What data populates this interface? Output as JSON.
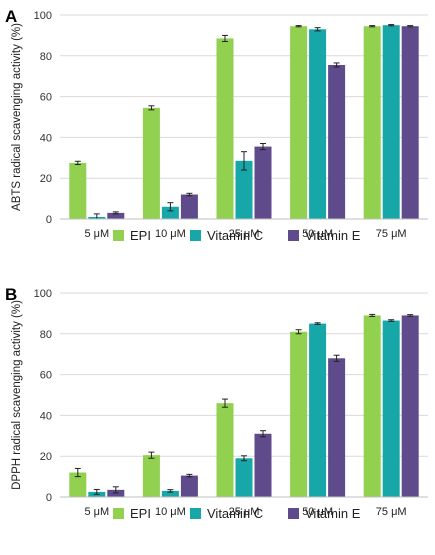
{
  "figure": {
    "panels": [
      "A",
      "B"
    ]
  },
  "chart_data": [
    {
      "panel": "A",
      "type": "bar",
      "title": "",
      "xlabel": "",
      "ylabel": "ABTS radical scavenging activity (%)",
      "ylim": [
        0,
        100
      ],
      "yticks": [
        0,
        20,
        40,
        60,
        80,
        100
      ],
      "grid": true,
      "legend_position": "bottom",
      "categories": [
        "5 μM",
        "10 μM",
        "25 μM",
        "50 μM",
        "75 μM"
      ],
      "series": [
        {
          "name": "EPI",
          "color": "#92d050",
          "values": [
            27.5,
            54.5,
            88.5,
            94.5,
            94.5
          ],
          "errors": [
            0.8,
            1.0,
            1.5,
            0.3,
            0.3
          ]
        },
        {
          "name": "Vitamin C",
          "color": "#17a7a9",
          "values": [
            1.0,
            6.0,
            28.5,
            93.0,
            95.0
          ],
          "errors": [
            1.5,
            2.0,
            4.5,
            0.8,
            0.3
          ]
        },
        {
          "name": "Vitamin E",
          "color": "#5f4b8b",
          "values": [
            3.0,
            12.0,
            35.5,
            75.5,
            94.5
          ],
          "errors": [
            0.5,
            0.6,
            1.5,
            1.0,
            0.3
          ]
        }
      ]
    },
    {
      "panel": "B",
      "type": "bar",
      "title": "",
      "xlabel": "",
      "ylabel": "DPPH radical scavenging activity (%)",
      "ylim": [
        0,
        100
      ],
      "yticks": [
        0,
        20,
        40,
        60,
        80,
        100
      ],
      "grid": true,
      "legend_position": "bottom",
      "categories": [
        "5 μM",
        "10 μM",
        "25 μM",
        "50 μM",
        "75 μM"
      ],
      "series": [
        {
          "name": "EPI",
          "color": "#92d050",
          "values": [
            12.0,
            20.5,
            46.0,
            81.0,
            89.0
          ],
          "errors": [
            2.0,
            1.5,
            2.0,
            1.0,
            0.5
          ]
        },
        {
          "name": "Vitamin C",
          "color": "#17a7a9",
          "values": [
            2.5,
            3.0,
            19.0,
            85.0,
            86.5
          ],
          "errors": [
            1.2,
            0.6,
            1.2,
            0.4,
            0.4
          ]
        },
        {
          "name": "Vitamin E",
          "color": "#5f4b8b",
          "values": [
            3.5,
            10.5,
            31.0,
            68.0,
            89.0
          ],
          "errors": [
            1.5,
            0.6,
            1.5,
            1.5,
            0.4
          ]
        }
      ]
    }
  ]
}
